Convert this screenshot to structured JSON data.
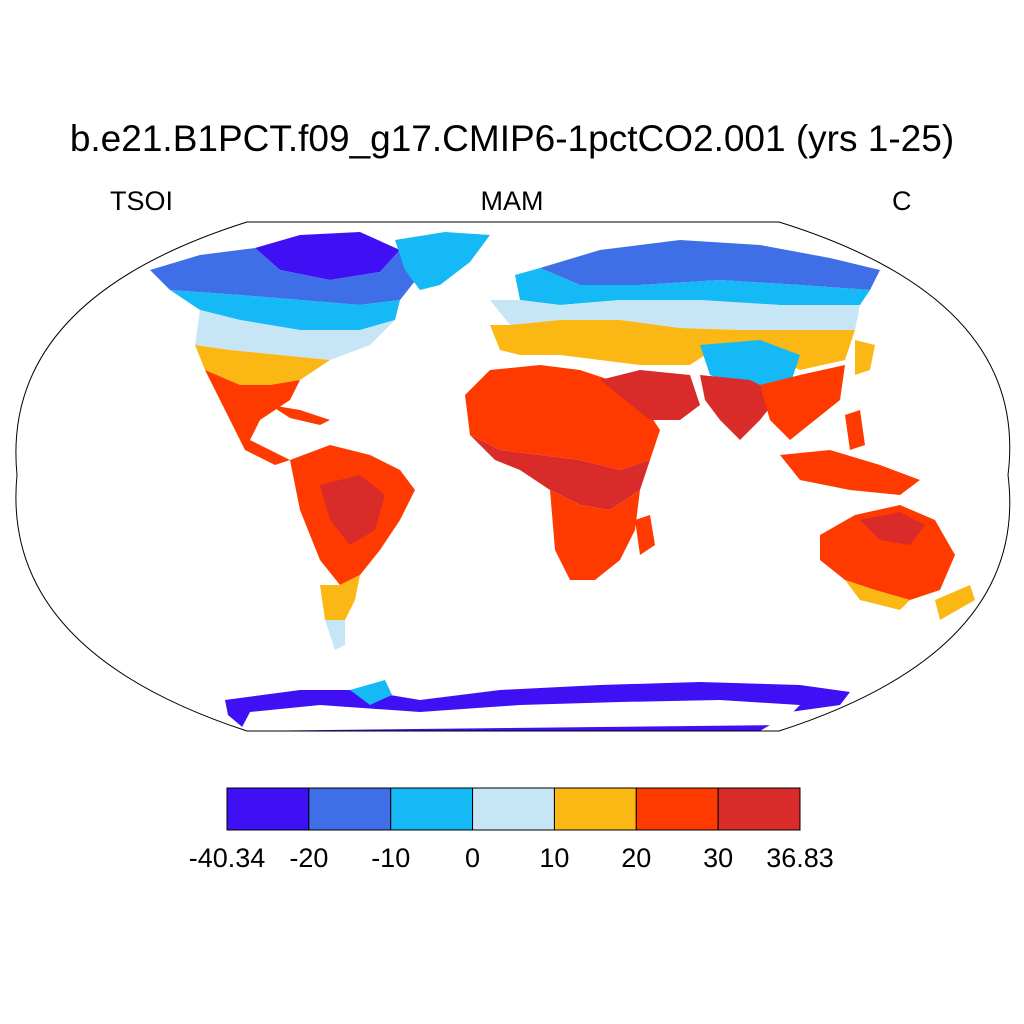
{
  "title": "b.e21.B1PCT.f09_g17.CMIP6-1pctCO2.001 (yrs 1-25)",
  "variable": "TSOI",
  "season": "MAM",
  "units": "C",
  "colorbar": {
    "labels": [
      "-40.34",
      "-20",
      "-10",
      "0",
      "10",
      "20",
      "30",
      "36.83"
    ],
    "colors": [
      "#3f10f4",
      "#3f6fe6",
      "#15b9f6",
      "#c6e6f6",
      "#fbb714",
      "#fe3a00",
      "#d92b2a"
    ]
  },
  "map": {
    "projection": "Robinson",
    "ocean_color": "#ffffff",
    "coastline_color": "#000000"
  }
}
